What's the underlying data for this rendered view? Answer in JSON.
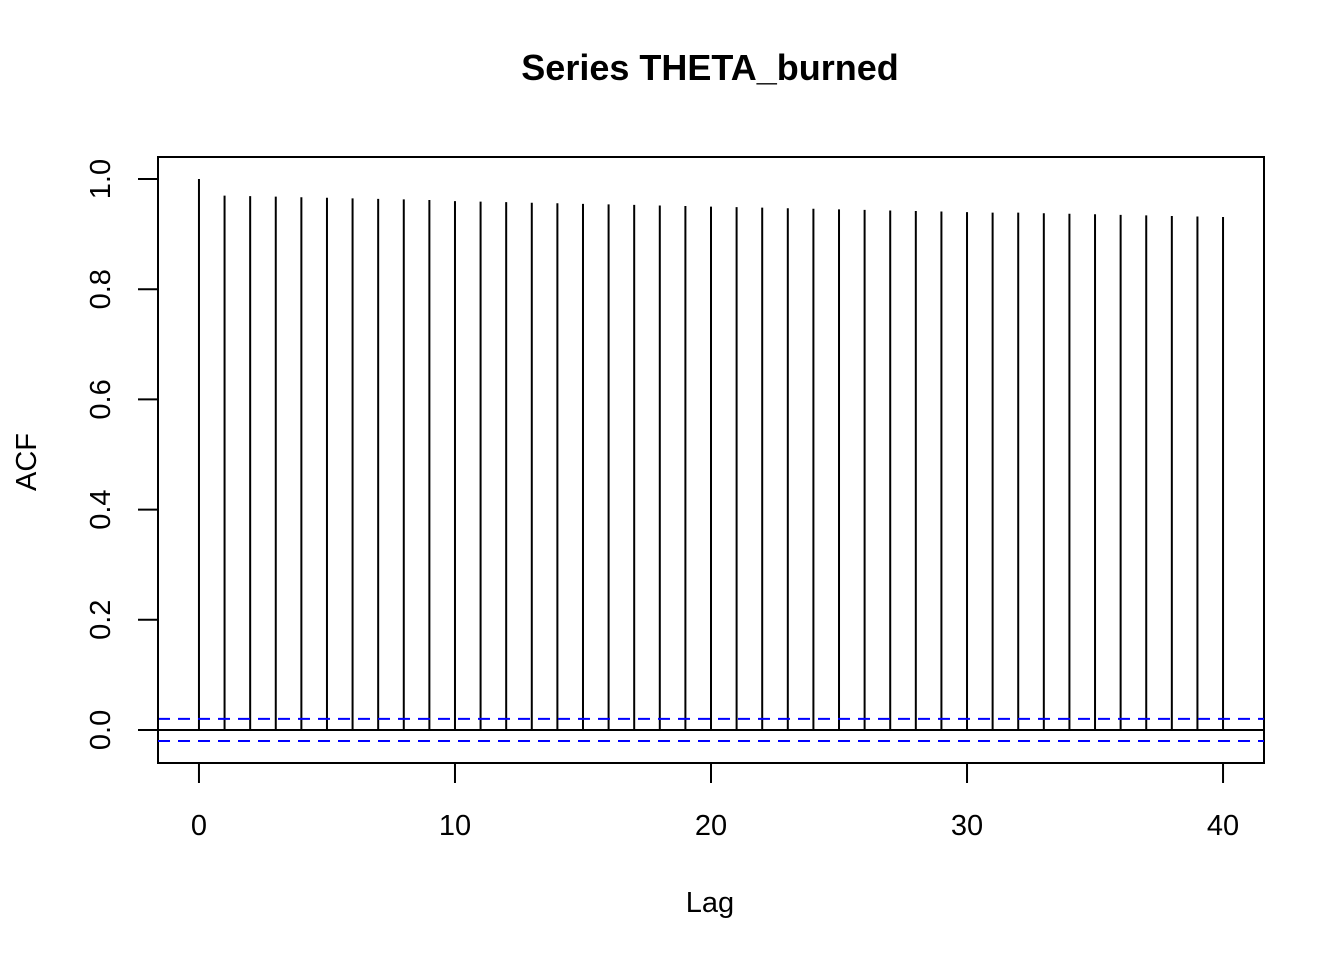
{
  "chart_data": {
    "type": "bar",
    "title": "Series  THETA_burned",
    "xlabel": "Lag",
    "ylabel": "ACF",
    "xlim": [
      -1.6,
      41.6
    ],
    "ylim": [
      -0.06,
      1.04
    ],
    "x_ticks": [
      "0",
      "10",
      "20",
      "30",
      "40"
    ],
    "y_ticks": [
      "0.0",
      "0.2",
      "0.4",
      "0.6",
      "0.8",
      "1.0"
    ],
    "lags": [
      0,
      1,
      2,
      3,
      4,
      5,
      6,
      7,
      8,
      9,
      10,
      11,
      12,
      13,
      14,
      15,
      16,
      17,
      18,
      19,
      20,
      21,
      22,
      23,
      24,
      25,
      26,
      27,
      28,
      29,
      30,
      31,
      32,
      33,
      34,
      35,
      36,
      37,
      38,
      39,
      40
    ],
    "values": [
      1.0,
      0.97,
      0.969,
      0.968,
      0.967,
      0.966,
      0.965,
      0.964,
      0.963,
      0.962,
      0.96,
      0.959,
      0.958,
      0.957,
      0.956,
      0.955,
      0.954,
      0.953,
      0.952,
      0.951,
      0.95,
      0.949,
      0.948,
      0.947,
      0.946,
      0.945,
      0.944,
      0.943,
      0.942,
      0.941,
      0.94,
      0.939,
      0.939,
      0.938,
      0.937,
      0.936,
      0.935,
      0.934,
      0.933,
      0.932,
      0.931
    ],
    "confidence_bound": 0.02,
    "grid": false,
    "colors": {
      "lines": "#000000",
      "confidence": "#0000ff"
    }
  }
}
